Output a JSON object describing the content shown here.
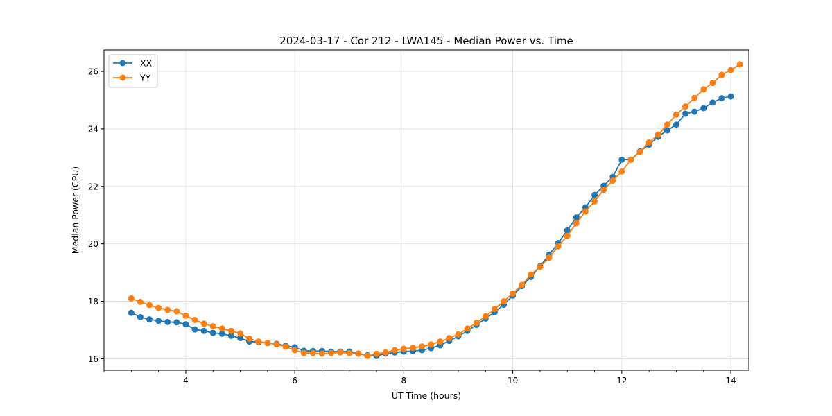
{
  "chart_data": {
    "type": "line",
    "title": "2024-03-17 - Cor 212 - LWA145 - Median Power vs. Time",
    "xlabel": "UT Time (hours)",
    "ylabel": "Median Power (CPU)",
    "xlim": [
      2.5,
      14.33
    ],
    "ylim": [
      15.6,
      26.75
    ],
    "xticks": [
      4,
      6,
      8,
      10,
      12,
      14
    ],
    "xtick_labels": [
      "4",
      "6",
      "8",
      "10",
      "12",
      "14"
    ],
    "xminor_step": 0.5,
    "yticks": [
      16,
      18,
      20,
      22,
      24,
      26
    ],
    "ytick_labels": [
      "16",
      "18",
      "20",
      "22",
      "24",
      "26"
    ],
    "grid": true,
    "legend": "top-left",
    "x_start": 3.0,
    "x_step": 0.16667,
    "series": [
      {
        "name": "XX",
        "color": "#1f77b4",
        "values": [
          17.6,
          17.45,
          17.37,
          17.32,
          17.28,
          17.27,
          17.2,
          17.02,
          16.97,
          16.9,
          16.87,
          16.8,
          16.72,
          16.6,
          16.58,
          16.55,
          16.52,
          16.45,
          16.4,
          16.28,
          16.27,
          16.27,
          16.25,
          16.25,
          16.25,
          16.18,
          16.12,
          16.1,
          16.18,
          16.22,
          16.25,
          16.27,
          16.3,
          16.37,
          16.47,
          16.62,
          16.78,
          16.97,
          17.18,
          17.4,
          17.62,
          17.88,
          18.2,
          18.53,
          18.85,
          19.22,
          19.62,
          20.03,
          20.47,
          20.92,
          21.27,
          21.7,
          22.02,
          22.33,
          22.93,
          22.93,
          23.22,
          23.45,
          23.73,
          23.95,
          24.15,
          24.53,
          24.6,
          24.72,
          24.92,
          25.07,
          25.13
        ]
      },
      {
        "name": "YY",
        "color": "#ff7f0e",
        "values": [
          18.1,
          17.98,
          17.87,
          17.77,
          17.7,
          17.65,
          17.5,
          17.35,
          17.22,
          17.13,
          17.05,
          16.97,
          16.88,
          16.7,
          16.6,
          16.55,
          16.5,
          16.42,
          16.3,
          16.2,
          16.2,
          16.18,
          16.2,
          16.22,
          16.2,
          16.18,
          16.1,
          16.17,
          16.22,
          16.3,
          16.35,
          16.38,
          16.43,
          16.5,
          16.6,
          16.72,
          16.85,
          17.05,
          17.25,
          17.48,
          17.73,
          18.0,
          18.27,
          18.57,
          18.93,
          19.2,
          19.52,
          19.92,
          20.28,
          20.72,
          21.13,
          21.48,
          21.88,
          22.2,
          22.52,
          22.93,
          23.2,
          23.53,
          23.8,
          24.15,
          24.5,
          24.78,
          25.08,
          25.38,
          25.6,
          25.88,
          26.05,
          26.25
        ]
      }
    ]
  }
}
